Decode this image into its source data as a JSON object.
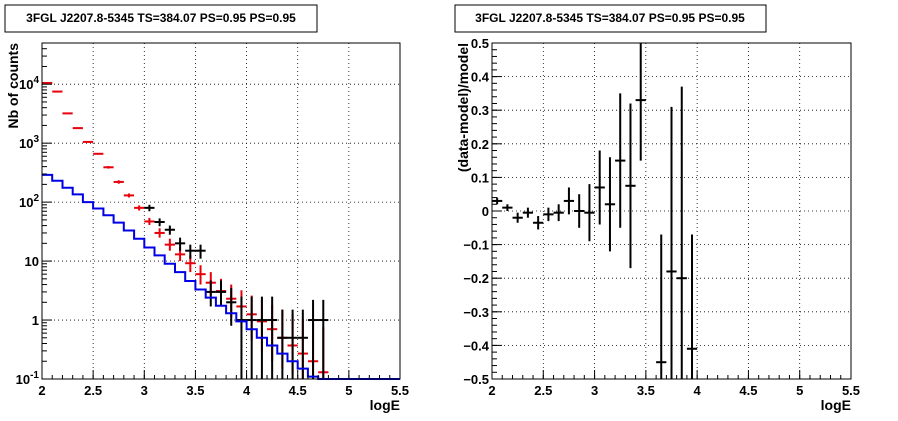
{
  "chart_data": [
    {
      "type": "scatter",
      "title": "3FGL J2207.8-5345 TS=384.07 PS=0.95 PS=0.95",
      "xlabel": "logE",
      "ylabel": "Nb of counts",
      "xlim": [
        2,
        5.5
      ],
      "ylim": [
        0.1,
        50000
      ],
      "yscale": "log",
      "grid": true,
      "x_ticks": [
        "2",
        "2.5",
        "3",
        "3.5",
        "4",
        "4.5",
        "5",
        "5.5"
      ],
      "y_ticks": [
        "10^-1",
        "1",
        "10",
        "10^2",
        "10^3",
        "10^4"
      ],
      "series": [
        {
          "color": "#e8000b",
          "style": "errorbar",
          "x": [
            2.05,
            2.15,
            2.25,
            2.35,
            2.45,
            2.55,
            2.65,
            2.75,
            2.85,
            2.95,
            3.05,
            3.15,
            3.25,
            3.35,
            3.45,
            3.55,
            3.65,
            3.75,
            3.85,
            3.95,
            4.05,
            4.15,
            4.25,
            4.35,
            4.45,
            4.55,
            4.65,
            4.75
          ],
          "y": [
            10500,
            7500,
            3200,
            1800,
            1050,
            660,
            390,
            220,
            130,
            80,
            47,
            30,
            19,
            13,
            9.2,
            6.0,
            4.3,
            3.1,
            2.3,
            1.7,
            1.25,
            0.95,
            0.7,
            0.5,
            0.37,
            0.27,
            0.2,
            0.13
          ],
          "y_low": [
            10300,
            7300,
            3100,
            1750,
            1020,
            640,
            370,
            205,
            120,
            72,
            41,
            25,
            15,
            10,
            6.5,
            4.0,
            2.6,
            1.7,
            1.1,
            0.7,
            0.45,
            0.3,
            0.2,
            0.15,
            0.12,
            0.1,
            0.1,
            0.1
          ],
          "y_high": [
            10700,
            7700,
            3300,
            1850,
            1080,
            680,
            410,
            235,
            140,
            88,
            54,
            36,
            24,
            17,
            12.5,
            8.5,
            6.5,
            5.0,
            4.0,
            3.2,
            2.6,
            2.2,
            1.8,
            1.5,
            1.25,
            1.05,
            0.9,
            0.75
          ]
        },
        {
          "color": "#000000",
          "style": "errorbar",
          "x": [
            3.05,
            3.15,
            3.25,
            3.35,
            3.45,
            3.55,
            3.65,
            3.75,
            3.85,
            3.95,
            4.05,
            4.15,
            4.25,
            4.35,
            4.45,
            4.55,
            4.65,
            4.75
          ],
          "y": [
            80,
            46,
            34,
            20,
            15,
            15,
            3.0,
            3.0,
            2.0,
            1.0,
            1.0,
            1.0,
            1.0,
            0.5,
            0.5,
            0.5,
            1.0,
            1.0
          ],
          "y_low": [
            70,
            39,
            28,
            15,
            11,
            11,
            1.7,
            1.7,
            0.8,
            0.1,
            0.1,
            0.1,
            0.1,
            0.1,
            0.1,
            0.1,
            0.1,
            0.1
          ],
          "y_high": [
            90,
            53,
            40,
            25,
            19,
            19,
            4.7,
            4.7,
            3.5,
            2.5,
            2.5,
            2.5,
            2.5,
            1.5,
            1.5,
            1.5,
            2.2,
            2.2
          ]
        },
        {
          "color": "#0000e6",
          "style": "step",
          "x": [
            2.0,
            2.1,
            2.2,
            2.3,
            2.4,
            2.5,
            2.6,
            2.7,
            2.8,
            2.9,
            3.0,
            3.1,
            3.2,
            3.3,
            3.4,
            3.5,
            3.6,
            3.7,
            3.8,
            3.9,
            4.0,
            4.1,
            4.2,
            4.3,
            4.4,
            4.5,
            4.6,
            4.7,
            4.8,
            4.9,
            5.0,
            5.5
          ],
          "y": [
            290,
            230,
            175,
            135,
            100,
            78,
            60,
            45,
            33,
            24,
            17,
            12.5,
            9,
            6.5,
            4.6,
            3.3,
            2.4,
            1.75,
            1.3,
            0.95,
            0.7,
            0.5,
            0.37,
            0.27,
            0.2,
            0.15,
            0.11,
            0.1,
            0.1,
            0.1,
            0.1,
            0.1
          ]
        }
      ]
    },
    {
      "type": "scatter",
      "title": "3FGL J2207.8-5345 TS=384.07 PS=0.95 PS=0.95",
      "xlabel": "logE",
      "ylabel": "(data-model)/model",
      "xlim": [
        2,
        5.5
      ],
      "ylim": [
        -0.5,
        0.5
      ],
      "grid": true,
      "x_ticks": [
        "2",
        "2.5",
        "3",
        "3.5",
        "4",
        "4.5",
        "5",
        "5.5"
      ],
      "y_ticks": [
        "−0.5",
        "−0.4",
        "−0.3",
        "−0.2",
        "−0.1",
        "0",
        "0.1",
        "0.2",
        "0.3",
        "0.4",
        "0.5"
      ],
      "series": [
        {
          "color": "#000000",
          "style": "errorbar",
          "x": [
            2.05,
            2.15,
            2.25,
            2.35,
            2.45,
            2.55,
            2.65,
            2.75,
            2.85,
            2.95,
            3.05,
            3.15,
            3.25,
            3.35,
            3.45,
            3.65,
            3.75,
            3.85,
            3.95
          ],
          "y": [
            0.03,
            0.01,
            -0.02,
            -0.005,
            -0.035,
            -0.01,
            -0.005,
            0.03,
            0.0,
            -0.005,
            0.07,
            0.02,
            0.15,
            0.075,
            0.33,
            -0.45,
            -0.18,
            -0.2,
            -0.41
          ],
          "y_low": [
            0.02,
            0.0,
            -0.035,
            -0.02,
            -0.055,
            -0.03,
            -0.03,
            -0.01,
            -0.05,
            -0.09,
            -0.04,
            -0.12,
            -0.05,
            -0.17,
            0.15,
            -0.5,
            -0.5,
            -0.5,
            -0.5
          ],
          "y_high": [
            0.04,
            0.02,
            -0.005,
            0.01,
            -0.015,
            0.01,
            0.02,
            0.07,
            0.05,
            0.08,
            0.18,
            0.16,
            0.35,
            0.32,
            0.5,
            -0.07,
            0.31,
            0.37,
            -0.07
          ]
        }
      ]
    }
  ]
}
